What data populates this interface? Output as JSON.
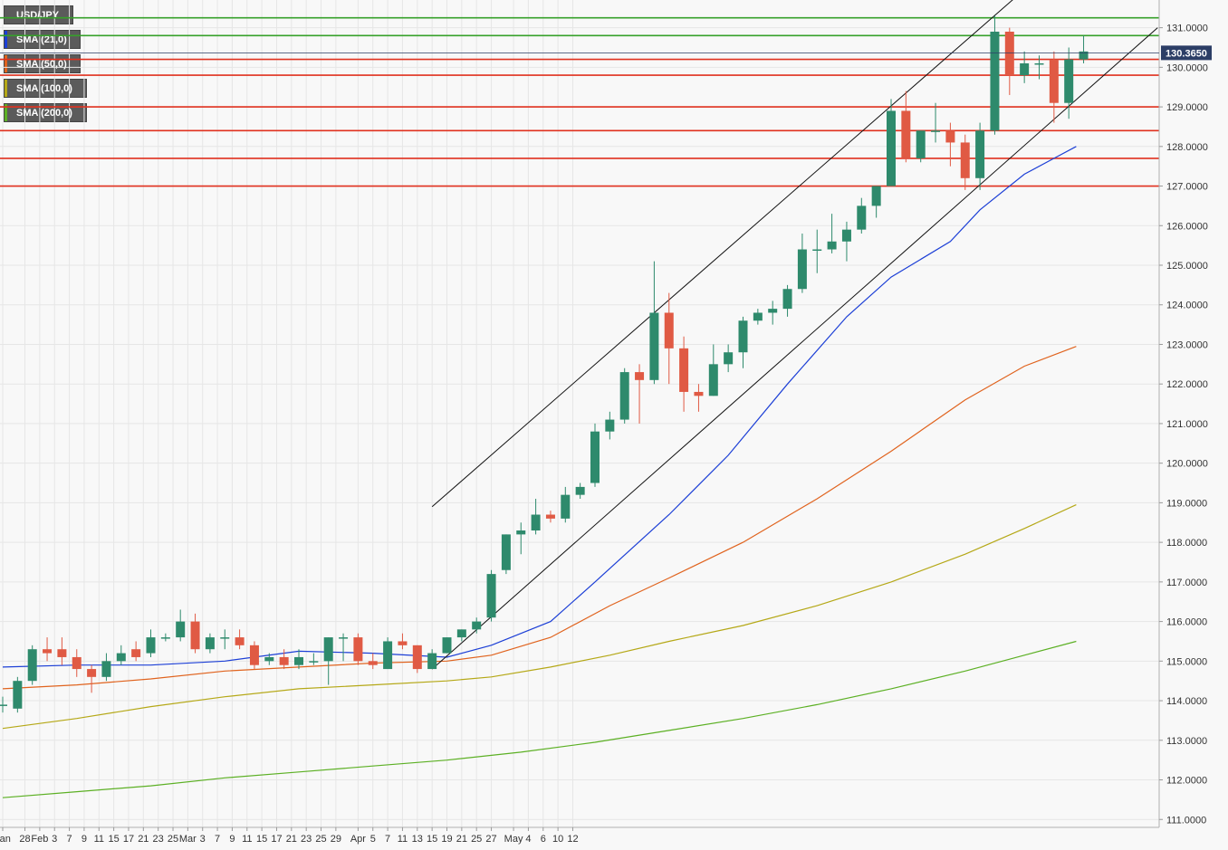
{
  "chart_data": {
    "type": "candlestick",
    "instrument": "USD/JPY",
    "current_price_label": "130.3650",
    "current_price": 130.365,
    "ylim": [
      110.8,
      131.7
    ],
    "y_ticks": [
      "111.0000",
      "112.0000",
      "113.0000",
      "114.0000",
      "115.0000",
      "116.0000",
      "117.0000",
      "118.0000",
      "119.0000",
      "120.0000",
      "121.0000",
      "122.0000",
      "123.0000",
      "124.0000",
      "125.0000",
      "126.0000",
      "127.0000",
      "128.0000",
      "129.0000",
      "130.0000",
      "131.0000"
    ],
    "x_ticks": [
      {
        "label": "Jan",
        "i": 0
      },
      {
        "label": "28",
        "i": 1.5
      },
      {
        "label": "Feb",
        "i": 2.5
      },
      {
        "label": "3",
        "i": 3.5
      },
      {
        "label": "7",
        "i": 4.5
      },
      {
        "label": "9",
        "i": 5.5
      },
      {
        "label": "11",
        "i": 6.5
      },
      {
        "label": "15",
        "i": 7.5
      },
      {
        "label": "17",
        "i": 8.5
      },
      {
        "label": "21",
        "i": 9.5
      },
      {
        "label": "23",
        "i": 10.5
      },
      {
        "label": "25",
        "i": 11.5
      },
      {
        "label": "Mar",
        "i": 12.5
      },
      {
        "label": "3",
        "i": 13.5
      },
      {
        "label": "7",
        "i": 14.5
      },
      {
        "label": "9",
        "i": 15.5
      },
      {
        "label": "11",
        "i": 16.5
      },
      {
        "label": "15",
        "i": 17.5
      },
      {
        "label": "17",
        "i": 18.5
      },
      {
        "label": "21",
        "i": 19.5
      },
      {
        "label": "23",
        "i": 20.5
      },
      {
        "label": "25",
        "i": 21.5
      },
      {
        "label": "29",
        "i": 22.5
      },
      {
        "label": "Apr",
        "i": 24
      },
      {
        "label": "5",
        "i": 25
      },
      {
        "label": "7",
        "i": 26
      },
      {
        "label": "11",
        "i": 27
      },
      {
        "label": "13",
        "i": 28
      },
      {
        "label": "15",
        "i": 29
      },
      {
        "label": "19",
        "i": 30
      },
      {
        "label": "21",
        "i": 31
      },
      {
        "label": "25",
        "i": 32
      },
      {
        "label": "27",
        "i": 33
      },
      {
        "label": "May",
        "i": 34.5
      },
      {
        "label": "4",
        "i": 35.5
      },
      {
        "label": "6",
        "i": 36.5
      },
      {
        "label": "10",
        "i": 37.5
      },
      {
        "label": "12",
        "i": 38.5
      }
    ],
    "candles": [
      {
        "o": 113.9,
        "h": 114.1,
        "l": 113.7,
        "c": 113.9
      },
      {
        "o": 113.8,
        "h": 114.6,
        "l": 113.7,
        "c": 114.5
      },
      {
        "o": 114.5,
        "h": 115.4,
        "l": 114.4,
        "c": 115.3
      },
      {
        "o": 115.3,
        "h": 115.6,
        "l": 115.0,
        "c": 115.2
      },
      {
        "o": 115.3,
        "h": 115.6,
        "l": 114.9,
        "c": 115.1
      },
      {
        "o": 115.1,
        "h": 115.3,
        "l": 114.6,
        "c": 114.8
      },
      {
        "o": 114.8,
        "h": 114.9,
        "l": 114.2,
        "c": 114.6
      },
      {
        "o": 114.6,
        "h": 115.2,
        "l": 114.5,
        "c": 115.0
      },
      {
        "o": 115.0,
        "h": 115.4,
        "l": 114.9,
        "c": 115.2
      },
      {
        "o": 115.3,
        "h": 115.5,
        "l": 115.0,
        "c": 115.1
      },
      {
        "o": 115.2,
        "h": 115.8,
        "l": 115.1,
        "c": 115.6
      },
      {
        "o": 115.6,
        "h": 115.7,
        "l": 115.5,
        "c": 115.6
      },
      {
        "o": 115.6,
        "h": 116.3,
        "l": 115.5,
        "c": 116.0
      },
      {
        "o": 116.0,
        "h": 116.2,
        "l": 115.2,
        "c": 115.3
      },
      {
        "o": 115.3,
        "h": 115.7,
        "l": 115.2,
        "c": 115.6
      },
      {
        "o": 115.6,
        "h": 115.8,
        "l": 115.3,
        "c": 115.6
      },
      {
        "o": 115.6,
        "h": 115.8,
        "l": 115.3,
        "c": 115.4
      },
      {
        "o": 115.4,
        "h": 115.5,
        "l": 114.8,
        "c": 114.9
      },
      {
        "o": 115.0,
        "h": 115.2,
        "l": 114.9,
        "c": 115.1
      },
      {
        "o": 115.1,
        "h": 115.3,
        "l": 114.8,
        "c": 114.9
      },
      {
        "o": 114.9,
        "h": 115.3,
        "l": 114.8,
        "c": 115.1
      },
      {
        "o": 115.0,
        "h": 115.2,
        "l": 114.9,
        "c": 115.0
      },
      {
        "o": 115.0,
        "h": 115.6,
        "l": 114.4,
        "c": 115.6
      },
      {
        "o": 115.6,
        "h": 115.7,
        "l": 115.0,
        "c": 115.6
      },
      {
        "o": 115.6,
        "h": 115.7,
        "l": 114.9,
        "c": 115.0
      },
      {
        "o": 115.0,
        "h": 115.2,
        "l": 114.8,
        "c": 114.9
      },
      {
        "o": 114.8,
        "h": 115.6,
        "l": 114.8,
        "c": 115.5
      },
      {
        "o": 115.5,
        "h": 115.7,
        "l": 115.3,
        "c": 115.4
      },
      {
        "o": 115.4,
        "h": 115.4,
        "l": 114.7,
        "c": 114.8
      },
      {
        "o": 114.8,
        "h": 115.3,
        "l": 114.8,
        "c": 115.2
      },
      {
        "o": 115.2,
        "h": 115.6,
        "l": 115.2,
        "c": 115.6
      },
      {
        "o": 115.6,
        "h": 115.8,
        "l": 115.5,
        "c": 115.8
      },
      {
        "o": 115.8,
        "h": 116.1,
        "l": 115.7,
        "c": 116.0
      },
      {
        "o": 116.1,
        "h": 117.3,
        "l": 116.0,
        "c": 117.2
      },
      {
        "o": 117.3,
        "h": 118.2,
        "l": 117.2,
        "c": 118.2
      },
      {
        "o": 118.2,
        "h": 118.5,
        "l": 117.7,
        "c": 118.3
      },
      {
        "o": 118.3,
        "h": 119.1,
        "l": 118.2,
        "c": 118.7
      },
      {
        "o": 118.7,
        "h": 118.8,
        "l": 118.5,
        "c": 118.6
      },
      {
        "o": 118.6,
        "h": 119.4,
        "l": 118.5,
        "c": 119.2
      },
      {
        "o": 119.2,
        "h": 119.5,
        "l": 119.1,
        "c": 119.4
      },
      {
        "o": 119.5,
        "h": 121.0,
        "l": 119.4,
        "c": 120.8
      },
      {
        "o": 120.8,
        "h": 121.3,
        "l": 120.6,
        "c": 121.1
      },
      {
        "o": 121.1,
        "h": 122.4,
        "l": 121.0,
        "c": 122.3
      },
      {
        "o": 122.3,
        "h": 122.5,
        "l": 121.0,
        "c": 122.1
      },
      {
        "o": 122.1,
        "h": 125.1,
        "l": 122.0,
        "c": 123.8
      },
      {
        "o": 123.8,
        "h": 124.3,
        "l": 122.0,
        "c": 122.9
      },
      {
        "o": 122.9,
        "h": 123.2,
        "l": 121.3,
        "c": 121.8
      },
      {
        "o": 121.8,
        "h": 122.0,
        "l": 121.3,
        "c": 121.7
      },
      {
        "o": 121.7,
        "h": 123.0,
        "l": 121.7,
        "c": 122.5
      },
      {
        "o": 122.5,
        "h": 123.0,
        "l": 122.3,
        "c": 122.8
      },
      {
        "o": 122.8,
        "h": 123.7,
        "l": 122.4,
        "c": 123.6
      },
      {
        "o": 123.6,
        "h": 123.9,
        "l": 123.5,
        "c": 123.8
      },
      {
        "o": 123.8,
        "h": 124.1,
        "l": 123.5,
        "c": 123.9
      },
      {
        "o": 123.9,
        "h": 124.5,
        "l": 123.7,
        "c": 124.4
      },
      {
        "o": 124.4,
        "h": 125.8,
        "l": 124.3,
        "c": 125.4
      },
      {
        "o": 125.4,
        "h": 125.9,
        "l": 124.8,
        "c": 125.4
      },
      {
        "o": 125.4,
        "h": 126.3,
        "l": 125.3,
        "c": 125.6
      },
      {
        "o": 125.6,
        "h": 126.1,
        "l": 125.1,
        "c": 125.9
      },
      {
        "o": 125.9,
        "h": 126.7,
        "l": 125.8,
        "c": 126.5
      },
      {
        "o": 126.5,
        "h": 127.0,
        "l": 126.2,
        "c": 127.0
      },
      {
        "o": 127.0,
        "h": 129.2,
        "l": 127.0,
        "c": 128.9
      },
      {
        "o": 128.9,
        "h": 129.4,
        "l": 127.6,
        "c": 127.7
      },
      {
        "o": 127.7,
        "h": 128.4,
        "l": 127.6,
        "c": 128.4
      },
      {
        "o": 128.4,
        "h": 129.1,
        "l": 128.1,
        "c": 128.4
      },
      {
        "o": 128.4,
        "h": 128.6,
        "l": 127.5,
        "c": 128.1
      },
      {
        "o": 128.1,
        "h": 128.3,
        "l": 126.9,
        "c": 127.2
      },
      {
        "o": 127.2,
        "h": 128.6,
        "l": 126.9,
        "c": 128.4
      },
      {
        "o": 128.4,
        "h": 131.3,
        "l": 128.3,
        "c": 130.9
      },
      {
        "o": 130.9,
        "h": 131.0,
        "l": 129.3,
        "c": 129.8
      },
      {
        "o": 129.8,
        "h": 130.4,
        "l": 129.6,
        "c": 130.1
      },
      {
        "o": 130.1,
        "h": 130.3,
        "l": 129.7,
        "c": 130.1
      },
      {
        "o": 130.2,
        "h": 130.4,
        "l": 128.6,
        "c": 129.1
      },
      {
        "o": 129.1,
        "h": 130.5,
        "l": 128.7,
        "c": 130.2
      },
      {
        "o": 130.2,
        "h": 130.8,
        "l": 130.1,
        "c": 130.4
      }
    ],
    "horizontal_levels": [
      {
        "value": 131.25,
        "color": "#36a12a"
      },
      {
        "value": 130.8,
        "color": "#36a12a"
      },
      {
        "value": 130.2,
        "color": "#e0301e"
      },
      {
        "value": 129.8,
        "color": "#e0301e"
      },
      {
        "value": 129.0,
        "color": "#e0301e"
      },
      {
        "value": 128.4,
        "color": "#e0301e"
      },
      {
        "value": 127.7,
        "color": "#e0301e"
      },
      {
        "value": 127.0,
        "color": "#e0301e"
      }
    ],
    "channel_lines": [
      {
        "from": {
          "i": 29,
          "y": 118.9
        },
        "to": {
          "i": 68.5,
          "y": 131.8
        }
      },
      {
        "from": {
          "i": 29,
          "y": 114.8
        },
        "to": {
          "i": 78,
          "y": 131.0
        }
      }
    ],
    "sma_series": [
      {
        "name": "SMA (21,0)",
        "color": "#1c3fd6",
        "points": [
          [
            0,
            114.85
          ],
          [
            5,
            114.9
          ],
          [
            10,
            114.9
          ],
          [
            15,
            115.0
          ],
          [
            20,
            115.25
          ],
          [
            25,
            115.2
          ],
          [
            30,
            115.1
          ],
          [
            33,
            115.4
          ],
          [
            37,
            116.0
          ],
          [
            40,
            117.0
          ],
          [
            45,
            118.7
          ],
          [
            49,
            120.2
          ],
          [
            53,
            122.0
          ],
          [
            57,
            123.7
          ],
          [
            60,
            124.7
          ],
          [
            64,
            125.6
          ],
          [
            66,
            126.4
          ],
          [
            69,
            127.3
          ],
          [
            71,
            127.7
          ],
          [
            72.5,
            128.0
          ]
        ]
      },
      {
        "name": "SMA (50,0)",
        "color": "#e0631e",
        "points": [
          [
            0,
            114.3
          ],
          [
            5,
            114.4
          ],
          [
            10,
            114.55
          ],
          [
            15,
            114.75
          ],
          [
            20,
            114.85
          ],
          [
            25,
            114.95
          ],
          [
            30,
            115.0
          ],
          [
            33,
            115.15
          ],
          [
            37,
            115.6
          ],
          [
            41,
            116.4
          ],
          [
            45,
            117.1
          ],
          [
            50,
            118.0
          ],
          [
            55,
            119.1
          ],
          [
            60,
            120.3
          ],
          [
            65,
            121.6
          ],
          [
            69,
            122.45
          ],
          [
            72.5,
            122.95
          ]
        ]
      },
      {
        "name": "SMA (100,0)",
        "color": "#b5a817",
        "points": [
          [
            0,
            113.3
          ],
          [
            5,
            113.55
          ],
          [
            10,
            113.85
          ],
          [
            15,
            114.1
          ],
          [
            20,
            114.3
          ],
          [
            25,
            114.4
          ],
          [
            30,
            114.5
          ],
          [
            33,
            114.6
          ],
          [
            37,
            114.85
          ],
          [
            41,
            115.15
          ],
          [
            45,
            115.5
          ],
          [
            50,
            115.9
          ],
          [
            55,
            116.4
          ],
          [
            60,
            117.0
          ],
          [
            65,
            117.7
          ],
          [
            69,
            118.35
          ],
          [
            72.5,
            118.95
          ]
        ]
      },
      {
        "name": "SMA (200,0)",
        "color": "#5cb024",
        "points": [
          [
            0,
            111.55
          ],
          [
            5,
            111.7
          ],
          [
            10,
            111.85
          ],
          [
            15,
            112.05
          ],
          [
            20,
            112.2
          ],
          [
            25,
            112.35
          ],
          [
            30,
            112.5
          ],
          [
            35,
            112.7
          ],
          [
            40,
            112.95
          ],
          [
            45,
            113.25
          ],
          [
            50,
            113.55
          ],
          [
            55,
            113.9
          ],
          [
            60,
            114.3
          ],
          [
            65,
            114.75
          ],
          [
            69,
            115.15
          ],
          [
            72.5,
            115.5
          ]
        ]
      }
    ]
  }
}
